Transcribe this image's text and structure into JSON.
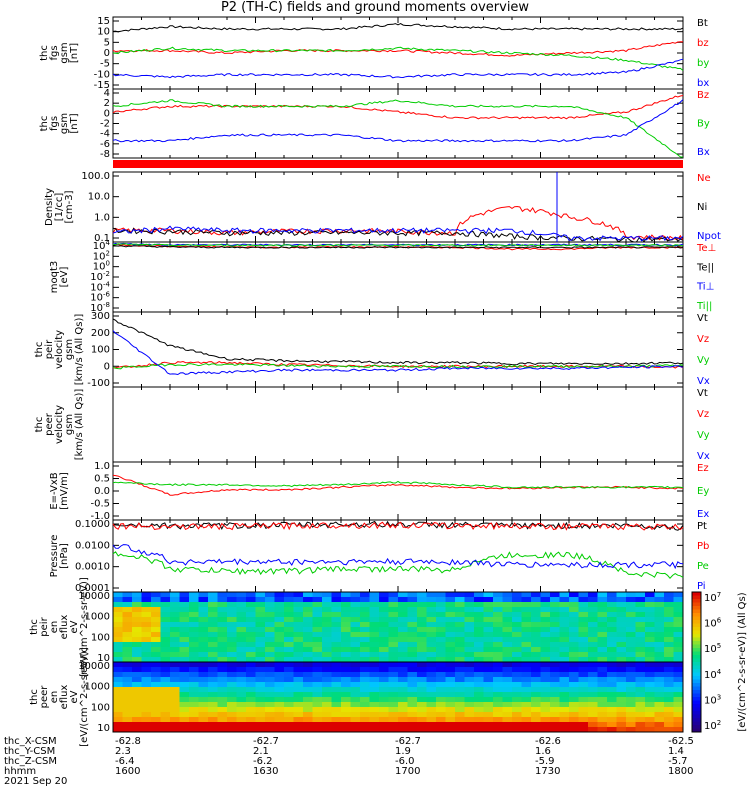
{
  "title": "P2 (TH-C) fields and ground moments overview",
  "date": "2021 Sep 20",
  "ephemeris": {
    "labels": [
      "thc_X-CSM",
      "thc_Y-CSM",
      "thc_Z-CSM",
      "hhmm"
    ],
    "columns": [
      [
        "-62.8",
        "2.3",
        "-6.4",
        "1600"
      ],
      [
        "-62.7",
        "2.1",
        "-6.2",
        "1630"
      ],
      [
        "-62.7",
        "1.9",
        "-6.0",
        "1700"
      ],
      [
        "-62.6",
        "1.6",
        "-5.9",
        "1730"
      ],
      [
        "-62.5",
        "1.4",
        "-5.7",
        "1800"
      ]
    ]
  },
  "colorbar": {
    "ticks": [
      "10^7",
      "10^6",
      "10^5",
      "10^4",
      "10^3",
      "10^2"
    ],
    "label": "[eV/(cm^2-s-sr-eV)] (All Qs)"
  },
  "chart_data": [
    {
      "type": "line",
      "ylabel": "thc fgs gsm [nT]",
      "yticks": [
        "15",
        "10",
        "5",
        "0",
        "-5",
        "-10",
        "-15"
      ],
      "ylim": [
        -15,
        15
      ],
      "series": [
        {
          "name": "Bt",
          "color": "#000000",
          "values": [
            9,
            11,
            10,
            10,
            10,
            12,
            11,
            10,
            10,
            10,
            10
          ]
        },
        {
          "name": "bz",
          "color": "#ff0000",
          "values": [
            1,
            1,
            0,
            1,
            1,
            1,
            0,
            -1,
            0,
            1,
            5
          ]
        },
        {
          "name": "by",
          "color": "#00cc00",
          "values": [
            0,
            2,
            1,
            1,
            1,
            2,
            1,
            0,
            -1,
            -3,
            -7
          ]
        },
        {
          "name": "bx",
          "color": "#0000ff",
          "values": [
            -9,
            -10,
            -9,
            -9,
            -9,
            -10,
            -9,
            -9,
            -9,
            -8,
            -3
          ]
        }
      ]
    },
    {
      "type": "line",
      "ylabel": "thc fgs gsm [nT]",
      "yticks": [
        "4",
        "2",
        "0",
        "-2",
        "-4",
        "-6",
        "-8"
      ],
      "ylim": [
        -8,
        4
      ],
      "series": [
        {
          "name": "Bz",
          "color": "#ff0000",
          "values": [
            0,
            1,
            1,
            1,
            1,
            0,
            -1,
            -1,
            -1,
            0,
            3
          ]
        },
        {
          "name": "By",
          "color": "#00cc00",
          "values": [
            1,
            2,
            1,
            1,
            1,
            2,
            1,
            1,
            1,
            -1,
            -8
          ]
        },
        {
          "name": "Bx",
          "color": "#0000ff",
          "values": [
            -5,
            -5,
            -4,
            -4,
            -4,
            -5,
            -5,
            -5,
            -5,
            -4,
            2
          ]
        }
      ]
    },
    {
      "type": "line",
      "ylabel": "Density [1/cc] [cm-3]",
      "yticks": [
        "100.0",
        "10.0",
        "1.0",
        "0.1"
      ],
      "log": true,
      "ylim": [
        0.05,
        200
      ],
      "series": [
        {
          "name": "Ne",
          "color": "#ff0000",
          "values": [
            0.2,
            0.2,
            0.15,
            0.18,
            0.2,
            0.18,
            0.15,
            3,
            1,
            0.1,
            0.08
          ]
        },
        {
          "name": "Ni",
          "color": "#000000",
          "values": [
            0.2,
            0.18,
            0.15,
            0.15,
            0.15,
            0.15,
            0.15,
            0.1,
            0.08,
            0.07,
            0.07
          ]
        },
        {
          "name": "Npot",
          "color": "#0000ff",
          "values": [
            0.15,
            0.25,
            0.2,
            0.2,
            0.2,
            0.2,
            0.2,
            0.2,
            0.08,
            0.08,
            0.08
          ]
        }
      ]
    },
    {
      "type": "line",
      "ylabel": "moqt3 [eV]",
      "yticks": [
        "10^4",
        "10^2",
        "10^0",
        "10^-2",
        "10^-4",
        "10^-6",
        "10^-8"
      ],
      "log": true,
      "ylim": [
        1e-09,
        10000
      ],
      "series": [
        {
          "name": "Te⊥",
          "color": "#ff0000",
          "values": [
            3000,
            1500,
            1200,
            1000,
            1200,
            1200,
            1000,
            500,
            500,
            1000,
            1000
          ]
        },
        {
          "name": "Te||",
          "color": "#000000",
          "values": [
            2000,
            1200,
            1000,
            1000,
            1000,
            1000,
            1000,
            1000,
            1000,
            1000,
            1000
          ]
        },
        {
          "name": "Ti⊥",
          "color": "#0000ff",
          "values": [
            5000,
            3000,
            3000,
            3000,
            3000,
            3000,
            3000,
            3000,
            3000,
            3000,
            3000
          ]
        },
        {
          "name": "Ti||",
          "color": "#00cc00",
          "values": [
            4000,
            2500,
            2500,
            2500,
            2500,
            2500,
            2500,
            2500,
            2500,
            2500,
            2500
          ]
        }
      ]
    },
    {
      "type": "line",
      "ylabel": "thc peir velocity gsm [km/s (All Qs)]",
      "yticks": [
        "300",
        "200",
        "100",
        "0",
        "-100"
      ],
      "ylim": [
        -100,
        300
      ],
      "series": [
        {
          "name": "Vt",
          "color": "#000000",
          "values": [
            260,
            120,
            50,
            40,
            35,
            30,
            30,
            25,
            25,
            25,
            30
          ]
        },
        {
          "name": "Vz",
          "color": "#ff0000",
          "values": [
            0,
            30,
            30,
            20,
            15,
            10,
            10,
            10,
            10,
            10,
            5
          ]
        },
        {
          "name": "Vy",
          "color": "#00cc00",
          "values": [
            0,
            20,
            20,
            15,
            10,
            10,
            10,
            10,
            10,
            10,
            15
          ]
        },
        {
          "name": "Vx",
          "color": "#0000ff",
          "values": [
            200,
            -30,
            -20,
            -10,
            -10,
            -10,
            0,
            0,
            0,
            5,
            10
          ]
        }
      ]
    },
    {
      "type": "line",
      "ylabel": "thc peer velocity gsm [km/s (All Qs)]",
      "yticks": [],
      "ylim": [
        -100,
        300
      ],
      "series": [
        {
          "name": "Vt",
          "color": "#000000",
          "values": []
        },
        {
          "name": "Vz",
          "color": "#ff0000",
          "values": []
        },
        {
          "name": "Vy",
          "color": "#00cc00",
          "values": []
        },
        {
          "name": "Vx",
          "color": "#0000ff",
          "values": []
        }
      ]
    },
    {
      "type": "line",
      "ylabel": "E=-VxB [mV/m]",
      "yticks": [
        "1.0",
        "0.5",
        "0.0",
        "-0.5",
        "-1.0"
      ],
      "ylim": [
        -1.3,
        1.0
      ],
      "series": [
        {
          "name": "Ez",
          "color": "#ff0000",
          "values": [
            0.5,
            -0.3,
            -0.1,
            -0.1,
            0.0,
            0.1,
            0.0,
            -0.05,
            0.0,
            0.0,
            -0.05
          ]
        },
        {
          "name": "Ey",
          "color": "#00cc00",
          "values": [
            0.2,
            0.1,
            0.1,
            0.05,
            0.1,
            0.2,
            0.1,
            0.0,
            0.0,
            0.0,
            0.0
          ]
        },
        {
          "name": "Ex",
          "color": "#0000ff",
          "values": []
        }
      ]
    },
    {
      "type": "line",
      "ylabel": "Pressure [nPa]",
      "yticks": [
        "0.1000",
        "0.0100",
        "0.0010",
        "0.0001"
      ],
      "log": true,
      "ylim": [
        0.0001,
        0.12
      ],
      "series": [
        {
          "name": "Pt",
          "color": "#000000",
          "values": [
            0.08,
            0.07,
            0.07,
            0.075,
            0.08,
            0.08,
            0.075,
            0.07,
            0.07,
            0.07,
            0.06
          ]
        },
        {
          "name": "Pb",
          "color": "#ff0000",
          "values": [
            0.07,
            0.065,
            0.065,
            0.07,
            0.075,
            0.075,
            0.07,
            0.07,
            0.065,
            0.065,
            0.06
          ]
        },
        {
          "name": "Pe",
          "color": "#00cc00",
          "values": [
            0.005,
            0.001,
            0.0008,
            0.0008,
            0.001,
            0.001,
            0.0009,
            0.004,
            0.004,
            0.0006,
            0.0005
          ]
        },
        {
          "name": "Pi",
          "color": "#0000ff",
          "values": [
            0.01,
            0.002,
            0.002,
            0.002,
            0.002,
            0.002,
            0.002,
            0.0015,
            0.0015,
            0.0015,
            0.0015
          ]
        }
      ]
    },
    {
      "type": "heatmap",
      "ylabel": "thc peir en eflux eV [eV/(cm^2-s-sr-eV)]",
      "yticks": [
        "10000",
        "1000",
        "100",
        "10"
      ],
      "log": true,
      "ylim": [
        5,
        25000
      ]
    },
    {
      "type": "heatmap",
      "ylabel": "thc peer en eflux eV [eV/(cm^2-s-sr-eV)]",
      "yticks": [
        "10000",
        "1000",
        "100",
        "10"
      ],
      "log": true,
      "ylim": [
        5,
        25000
      ]
    }
  ]
}
